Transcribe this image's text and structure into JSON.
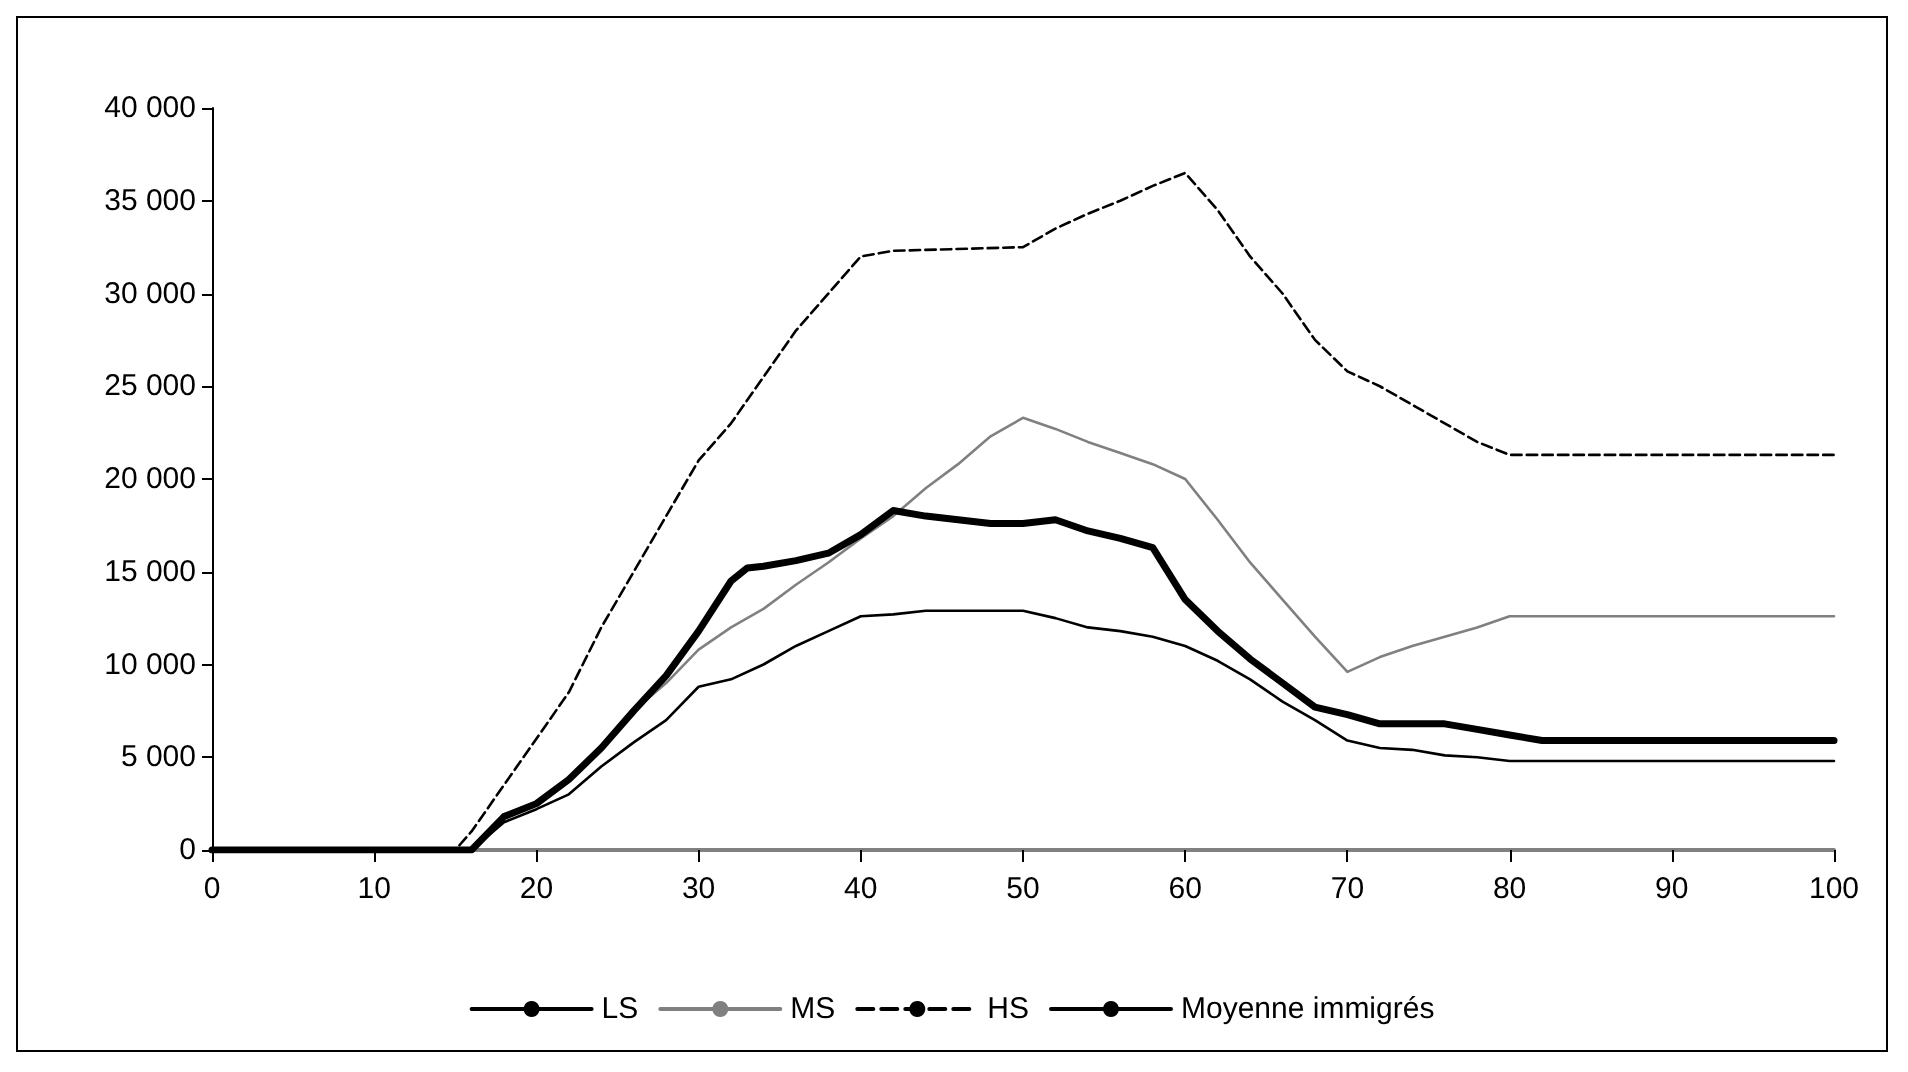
{
  "chart_data": {
    "type": "line",
    "xlim": [
      0,
      100
    ],
    "xticks": [
      0,
      10,
      20,
      30,
      40,
      50,
      60,
      70,
      80,
      90,
      100
    ],
    "ylim": [
      0,
      40000
    ],
    "yticks": [
      0,
      {
        "value": 5000,
        "label": "5 000"
      },
      {
        "value": 10000,
        "label": "10 000"
      },
      {
        "value": 15000,
        "label": "15 000"
      },
      {
        "value": 20000,
        "label": "20 000"
      },
      {
        "value": 25000,
        "label": "25 000"
      },
      {
        "value": 30000,
        "label": "30 000"
      },
      {
        "value": 35000,
        "label": "35 000"
      },
      {
        "value": 40000,
        "label": "40 000"
      }
    ],
    "grid": false,
    "legend": "bottom",
    "marker": "none",
    "series": [
      {
        "name": "LS",
        "color": "#000000",
        "line_style": "solid",
        "x": [
          0,
          16,
          18,
          20,
          22,
          24,
          26,
          28,
          30,
          32,
          34,
          36,
          38,
          40,
          42,
          44,
          50,
          52,
          54,
          56,
          58,
          60,
          62,
          64,
          66,
          68,
          70,
          72,
          74,
          76,
          78,
          80,
          100
        ],
        "values": [
          0,
          0,
          1500,
          2200,
          3000,
          4500,
          5800,
          7000,
          8800,
          9200,
          10000,
          11000,
          11800,
          12600,
          12700,
          12900,
          12900,
          12500,
          12000,
          11800,
          11500,
          11000,
          10200,
          9200,
          8000,
          7000,
          5900,
          5500,
          5400,
          5100,
          5000,
          4800,
          4800
        ]
      },
      {
        "name": "MS",
        "color": "#808080",
        "line_style": "solid",
        "x": [
          0,
          16,
          18,
          20,
          22,
          24,
          26,
          28,
          30,
          32,
          34,
          36,
          38,
          40,
          42,
          44,
          46,
          48,
          50,
          52,
          54,
          56,
          58,
          60,
          62,
          64,
          66,
          68,
          70,
          72,
          74,
          76,
          78,
          80,
          100
        ],
        "values": [
          0,
          0,
          1800,
          2600,
          3800,
          5500,
          7500,
          9000,
          10800,
          12000,
          13000,
          14300,
          15500,
          16800,
          18000,
          19500,
          20800,
          22300,
          23300,
          22700,
          22000,
          21400,
          20800,
          20000,
          17800,
          15500,
          13500,
          11500,
          9600,
          10400,
          11000,
          11500,
          12000,
          12600,
          12600
        ]
      },
      {
        "name": "HS",
        "color": "#000000",
        "line_style": "dashed",
        "x": [
          0,
          15,
          16,
          18,
          20,
          22,
          24,
          26,
          28,
          30,
          32,
          34,
          36,
          38,
          40,
          42,
          50,
          52,
          54,
          56,
          58,
          60,
          62,
          64,
          66,
          68,
          70,
          72,
          74,
          76,
          78,
          80,
          100
        ],
        "values": [
          0,
          0,
          1000,
          3500,
          6000,
          8500,
          12000,
          15000,
          18000,
          21000,
          23000,
          25500,
          28000,
          30000,
          32000,
          32300,
          32500,
          33500,
          34300,
          35000,
          35800,
          36500,
          34500,
          32000,
          30000,
          27500,
          25800,
          25000,
          24000,
          23000,
          22000,
          21300,
          21300
        ]
      },
      {
        "name": "Moyenne immigrés",
        "color": "#000000",
        "line_style": "solid",
        "x": [
          0,
          16,
          18,
          20,
          22,
          24,
          26,
          28,
          30,
          32,
          33,
          34,
          36,
          38,
          40,
          42,
          44,
          46,
          48,
          50,
          52,
          54,
          56,
          58,
          60,
          62,
          64,
          66,
          68,
          70,
          72,
          76,
          78,
          80,
          82,
          100
        ],
        "values": [
          0,
          0,
          1800,
          2500,
          3800,
          5500,
          7500,
          9400,
          11800,
          14500,
          15200,
          15300,
          15600,
          16000,
          17000,
          18300,
          18000,
          17800,
          17600,
          17600,
          17800,
          17200,
          16800,
          16300,
          13500,
          11800,
          10300,
          9000,
          7700,
          7300,
          6800,
          6800,
          6500,
          6200,
          5900,
          5900
        ]
      }
    ]
  }
}
